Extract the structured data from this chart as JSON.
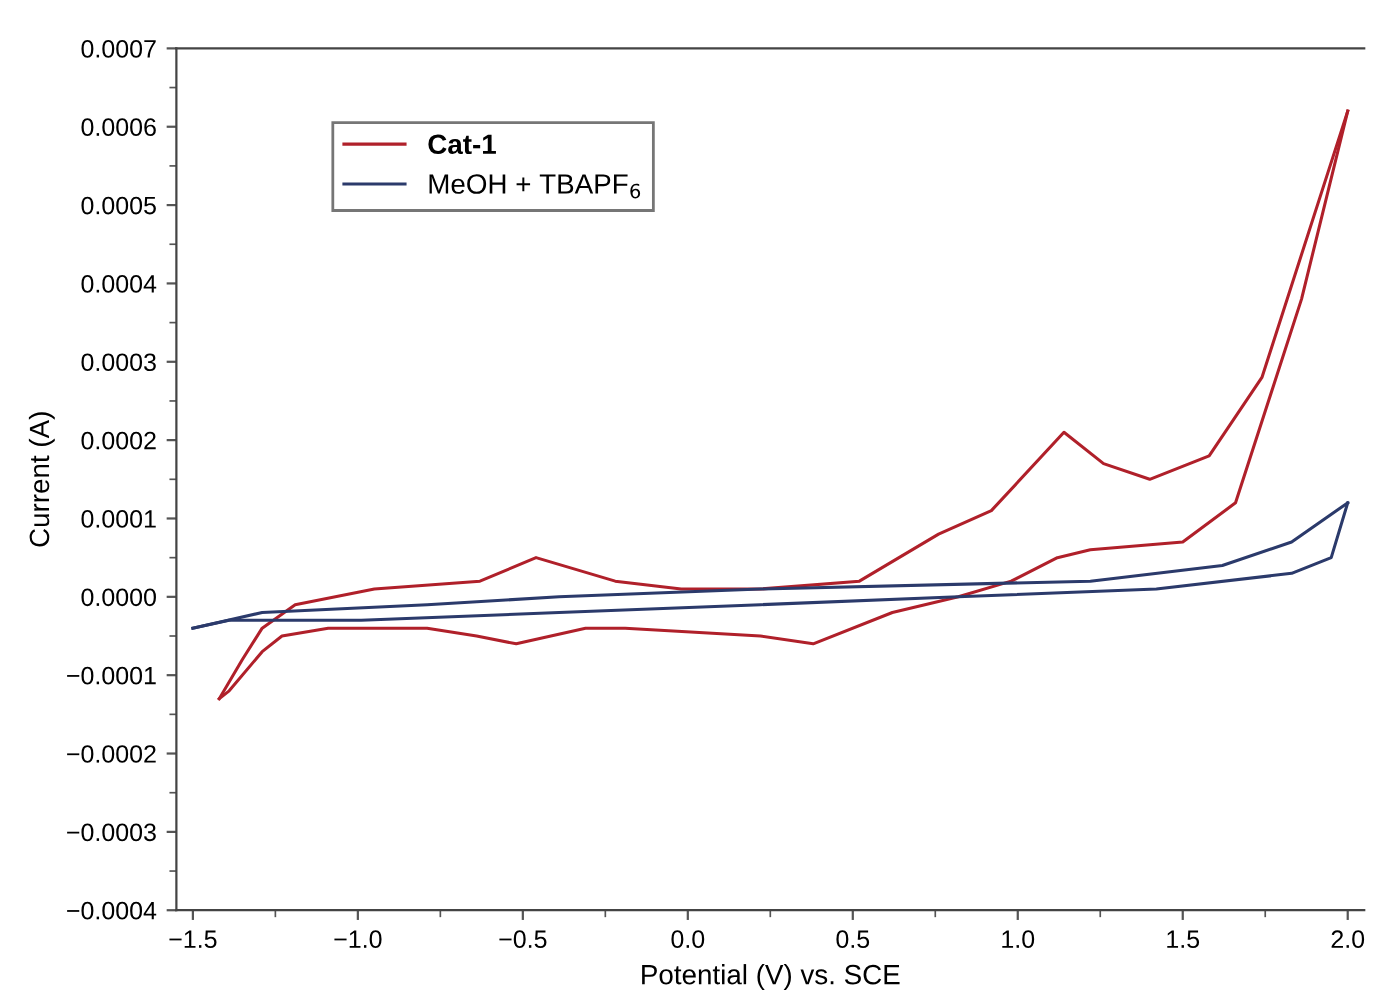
{
  "chart_data": {
    "type": "line",
    "xlabel": "Potential (V) vs. SCE",
    "ylabel": "Current (A)",
    "xlim": [
      -1.55,
      2.05
    ],
    "ylim": [
      -0.0004,
      0.0007
    ],
    "xticks": [
      {
        "value": -1.5,
        "label": "−1.5"
      },
      {
        "value": -1.0,
        "label": "−1.0"
      },
      {
        "value": -0.5,
        "label": "−0.5"
      },
      {
        "value": 0.0,
        "label": "0.0"
      },
      {
        "value": 0.5,
        "label": "0.5"
      },
      {
        "value": 1.0,
        "label": "1.0"
      },
      {
        "value": 1.5,
        "label": "1.5"
      },
      {
        "value": 2.0,
        "label": "2.0"
      }
    ],
    "yticks": [
      {
        "value": -0.0004,
        "label": "−0.0004"
      },
      {
        "value": -0.0003,
        "label": "−0.0003"
      },
      {
        "value": -0.0002,
        "label": "−0.0002"
      },
      {
        "value": -0.0001,
        "label": "−0.0001"
      },
      {
        "value": 0.0,
        "label": "0.0000"
      },
      {
        "value": 0.0001,
        "label": "0.0001"
      },
      {
        "value": 0.0002,
        "label": "0.0002"
      },
      {
        "value": 0.0003,
        "label": "0.0003"
      },
      {
        "value": 0.0004,
        "label": "0.0004"
      },
      {
        "value": 0.0005,
        "label": "0.0005"
      },
      {
        "value": 0.0006,
        "label": "0.0006"
      },
      {
        "value": 0.0007,
        "label": "0.0007"
      }
    ],
    "grid": false,
    "legend": "top left",
    "marker": "none",
    "line_style": "solid",
    "series": [
      {
        "name": "Cat-1",
        "color": "#b0202a",
        "x": [
          -1.42,
          -1.35,
          -1.29,
          -1.19,
          -0.95,
          -0.63,
          -0.46,
          -0.22,
          -0.02,
          0.22,
          0.52,
          0.76,
          0.92,
          1.14,
          1.26,
          1.4,
          1.58,
          1.74,
          2.0
        ],
        "values": [
          -0.00013,
          -8e-05,
          -4e-05,
          -1e-05,
          1e-05,
          2e-05,
          5e-05,
          2e-05,
          1e-05,
          1e-05,
          2e-05,
          8e-05,
          0.00011,
          0.00021,
          0.00017,
          0.00015,
          0.00018,
          0.00028,
          0.00062
        ]
      },
      {
        "color": "#b0202a",
        "x": [
          2.0,
          1.86,
          1.66,
          1.5,
          1.22,
          1.12,
          0.98,
          0.82,
          0.62,
          0.38,
          0.22,
          -0.19,
          -0.31,
          -0.52,
          -0.64,
          -0.79,
          -1.09,
          -1.23,
          -1.29,
          -1.39,
          -1.42
        ],
        "values": [
          0.00062,
          0.00038,
          0.00012,
          7e-05,
          6e-05,
          5e-05,
          2e-05,
          0.0,
          -2e-05,
          -6e-05,
          -5e-05,
          -4e-05,
          -4e-05,
          -6e-05,
          -5e-05,
          -4e-05,
          -4e-05,
          -5e-05,
          -7e-05,
          -0.00012,
          -0.00013
        ]
      },
      {
        "name": "MeOH + TBAPF$_{6}$",
        "color": "#2b3a6b",
        "x": [
          -1.5,
          -1.29,
          -0.79,
          -0.39,
          0.22,
          1.22,
          1.62,
          1.83,
          2.0
        ],
        "values": [
          -4e-05,
          -2e-05,
          -1e-05,
          0.0,
          1e-05,
          2e-05,
          4e-05,
          7e-05,
          0.00012
        ]
      },
      {
        "color": "#2b3a6b",
        "x": [
          2.0,
          1.95,
          1.83,
          1.42,
          0.82,
          0.22,
          -0.39,
          -0.99,
          -1.39,
          -1.5
        ],
        "values": [
          0.00012,
          5e-05,
          3e-05,
          1e-05,
          0.0,
          -1e-05,
          -2e-05,
          -3e-05,
          -3e-05,
          -4e-05
        ]
      }
    ]
  }
}
